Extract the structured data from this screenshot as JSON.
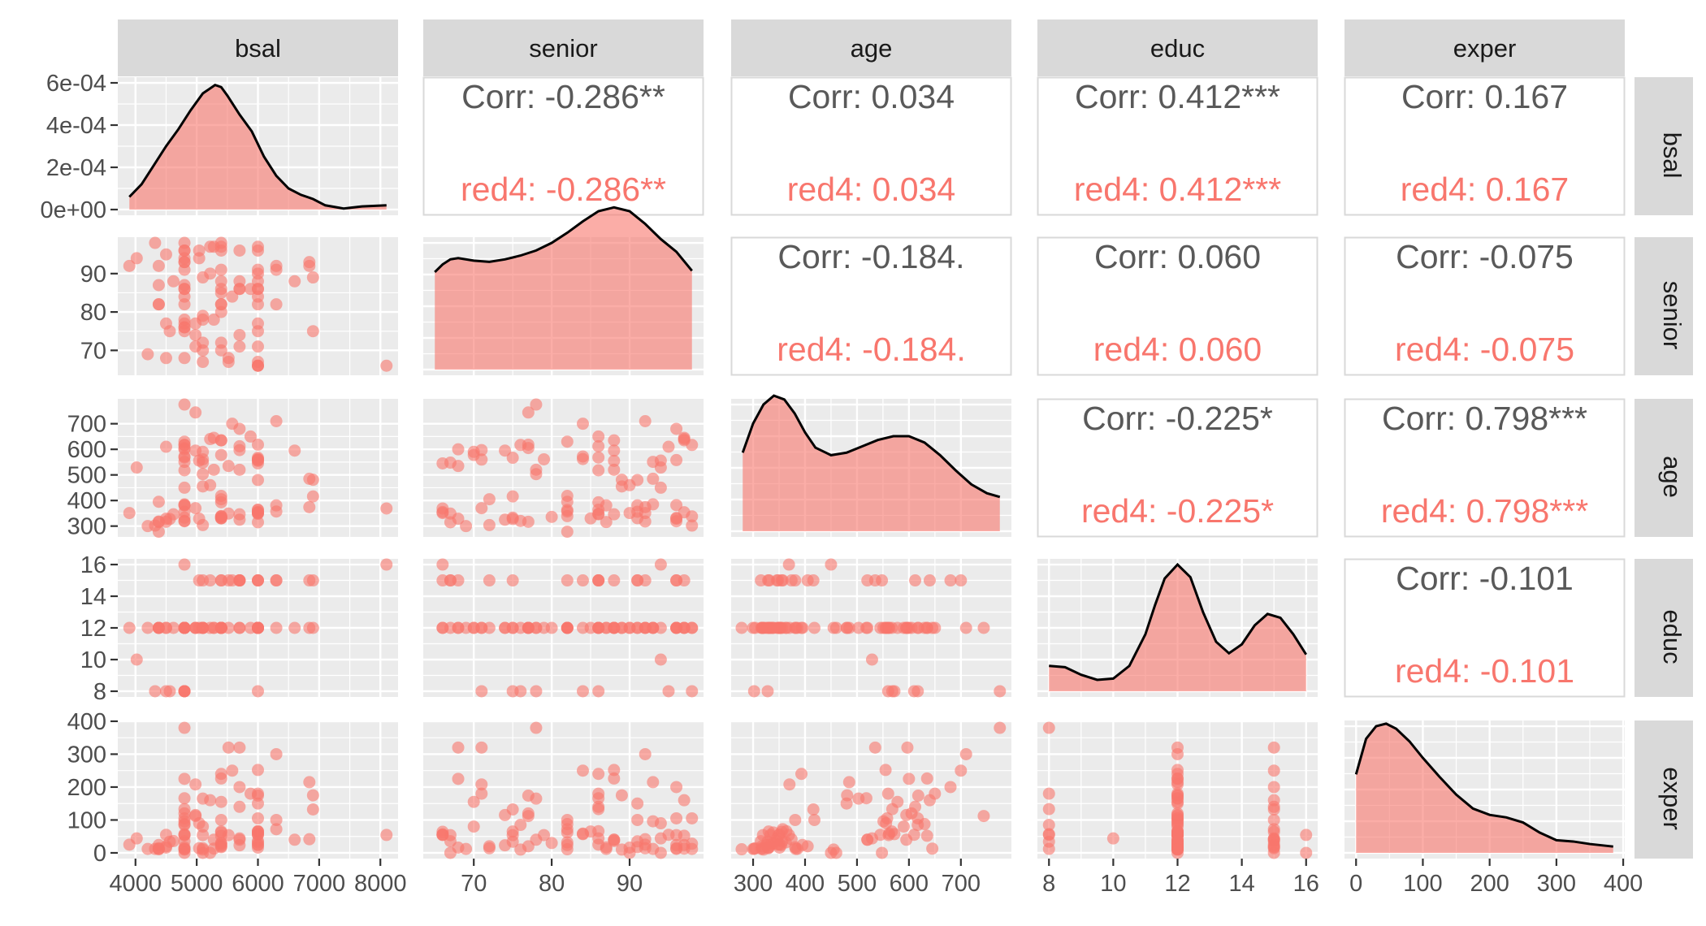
{
  "variables": [
    "bsal",
    "senior",
    "age",
    "educ",
    "exper"
  ],
  "colors": {
    "group": "#F8766D",
    "corr_text": "#595959",
    "panel_bg": "#EBEBEB",
    "strip_bg": "#D9D9D9",
    "grid": "#FFFFFF"
  },
  "chart_data": {
    "type": "scatter",
    "group_label": "red4",
    "variables": [
      "bsal",
      "senior",
      "age",
      "educ",
      "exper"
    ],
    "axes": {
      "bsal": {
        "lim": [
          3900,
          8100
        ],
        "ticks": [
          4000,
          5000,
          6000,
          7000,
          8000
        ],
        "labels": [
          "4000",
          "5000",
          "6000",
          "7000",
          "8000"
        ]
      },
      "senior": {
        "lim": [
          65,
          98
        ],
        "ticks": [
          70,
          80,
          90
        ],
        "labels": [
          "70",
          "80",
          "90"
        ]
      },
      "age": {
        "lim": [
          280,
          775
        ],
        "ticks": [
          300,
          400,
          500,
          600,
          700
        ],
        "labels": [
          "300",
          "400",
          "500",
          "600",
          "700"
        ]
      },
      "educ": {
        "lim": [
          8,
          16
        ],
        "ticks": [
          8,
          10,
          12,
          14,
          16
        ],
        "labels": [
          "8",
          "10",
          "12",
          "14",
          "16"
        ]
      },
      "exper": {
        "lim": [
          0,
          385
        ],
        "ticks": [
          0,
          100,
          200,
          300,
          400
        ],
        "labels": [
          "0",
          "100",
          "200",
          "300",
          "400"
        ]
      }
    },
    "density_ylim": [
      0,
      0.0006
    ],
    "density_ticks": [
      0,
      0.0002,
      0.0004,
      0.0006
    ],
    "density_labels": [
      "0e+00",
      "2e-04",
      "4e-04",
      "6e-04"
    ],
    "densities": {
      "bsal": {
        "x": [
          3900,
          4100,
          4300,
          4500,
          4700,
          4900,
          5100,
          5300,
          5400,
          5500,
          5700,
          5900,
          6100,
          6300,
          6500,
          6700,
          6900,
          7100,
          7400,
          7700,
          8100
        ],
        "y": [
          6e-05,
          0.00012,
          0.00021,
          0.0003,
          0.00038,
          0.00047,
          0.00055,
          0.00059,
          0.00058,
          0.00054,
          0.00045,
          0.00037,
          0.00025,
          0.00016,
          0.0001,
          7e-05,
          5e-05,
          2e-05,
          5e-06,
          1.5e-05,
          2e-05
        ]
      },
      "senior": {
        "x": [
          65,
          66,
          67,
          68,
          70,
          72,
          74,
          76,
          78,
          80,
          82,
          84,
          86,
          88,
          90,
          92,
          94,
          96,
          98
        ],
        "y": [
          0.77,
          0.83,
          0.87,
          0.88,
          0.86,
          0.85,
          0.87,
          0.9,
          0.94,
          1.0,
          1.08,
          1.17,
          1.25,
          1.28,
          1.25,
          1.15,
          1.03,
          0.93,
          0.78
        ]
      },
      "age": {
        "x": [
          280,
          300,
          320,
          340,
          360,
          380,
          400,
          420,
          450,
          480,
          510,
          540,
          570,
          600,
          630,
          660,
          690,
          720,
          750,
          775
        ],
        "y": [
          0.62,
          0.85,
          1.0,
          1.07,
          1.04,
          0.93,
          0.78,
          0.66,
          0.6,
          0.62,
          0.67,
          0.72,
          0.75,
          0.75,
          0.7,
          0.6,
          0.48,
          0.37,
          0.3,
          0.27
        ]
      },
      "educ": {
        "x": [
          8,
          8.5,
          9,
          9.5,
          10,
          10.5,
          11,
          11.3,
          11.6,
          12,
          12.4,
          12.8,
          13.2,
          13.6,
          14,
          14.4,
          14.8,
          15.2,
          15.6,
          16
        ],
        "y": [
          0.2,
          0.19,
          0.13,
          0.09,
          0.1,
          0.2,
          0.45,
          0.68,
          0.89,
          1.0,
          0.9,
          0.62,
          0.39,
          0.3,
          0.37,
          0.52,
          0.61,
          0.58,
          0.45,
          0.29
        ]
      },
      "exper": {
        "x": [
          0,
          15,
          30,
          45,
          60,
          80,
          100,
          125,
          150,
          175,
          200,
          225,
          250,
          275,
          300,
          325,
          350,
          385
        ],
        "y": [
          0.62,
          0.9,
          1.0,
          1.02,
          0.98,
          0.88,
          0.75,
          0.6,
          0.46,
          0.35,
          0.3,
          0.28,
          0.24,
          0.16,
          0.1,
          0.09,
          0.07,
          0.05
        ]
      }
    },
    "correlations": [
      {
        "row": "bsal",
        "col": "senior",
        "label": "Corr: -0.286**",
        "group_label": "red4: -0.286**"
      },
      {
        "row": "bsal",
        "col": "age",
        "label": "Corr: 0.034",
        "group_label": "red4: 0.034"
      },
      {
        "row": "bsal",
        "col": "educ",
        "label": "Corr: 0.412***",
        "group_label": "red4: 0.412***"
      },
      {
        "row": "bsal",
        "col": "exper",
        "label": "Corr: 0.167",
        "group_label": "red4: 0.167"
      },
      {
        "row": "senior",
        "col": "age",
        "label": "Corr: -0.184.",
        "group_label": "red4: -0.184."
      },
      {
        "row": "senior",
        "col": "educ",
        "label": "Corr: 0.060",
        "group_label": "red4: 0.060"
      },
      {
        "row": "senior",
        "col": "exper",
        "label": "Corr: -0.075",
        "group_label": "red4: -0.075"
      },
      {
        "row": "age",
        "col": "educ",
        "label": "Corr: -0.225*",
        "group_label": "red4: -0.225*"
      },
      {
        "row": "age",
        "col": "exper",
        "label": "Corr: 0.798***",
        "group_label": "red4: 0.798***"
      },
      {
        "row": "educ",
        "col": "exper",
        "label": "Corr: -0.101",
        "group_label": "red4: -0.101"
      }
    ],
    "observations": {
      "columns": [
        "bsal",
        "senior",
        "age",
        "educ",
        "exper"
      ],
      "rows": [
        [
          5040,
          96,
          329,
          15,
          14
        ],
        [
          6300,
          82,
          357,
          15,
          72
        ],
        [
          6000,
          67,
          315,
          15,
          35.5
        ],
        [
          6000,
          97,
          354,
          12,
          24
        ],
        [
          6000,
          66,
          351,
          12,
          56
        ],
        [
          6840,
          92,
          374,
          15,
          41.5
        ],
        [
          8100,
          66,
          369,
          16,
          54.5
        ],
        [
          6000,
          82,
          363,
          12,
          32
        ],
        [
          6000,
          88,
          555,
          12,
          252
        ],
        [
          6900,
          75,
          416,
          15,
          132
        ],
        [
          6900,
          89,
          481,
          12,
          175
        ],
        [
          5400,
          91,
          331,
          15,
          17.5
        ],
        [
          6000,
          66,
          355,
          15,
          64
        ],
        [
          6000,
          86,
          348,
          15,
          25
        ],
        [
          6000,
          90,
          351,
          12,
          16
        ],
        [
          6000,
          96,
          558,
          12,
          105
        ],
        [
          6000,
          84,
          562,
          12,
          58.5
        ],
        [
          6840,
          93,
          485,
          12,
          215
        ],
        [
          5700,
          86,
          346,
          15,
          44
        ],
        [
          5400,
          97,
          635,
          12,
          52
        ],
        [
          5520,
          67,
          349,
          12,
          54
        ],
        [
          5400,
          96,
          332,
          12,
          24
        ],
        [
          6000,
          86,
          364,
          12,
          66
        ],
        [
          5400,
          80,
          336,
          12,
          30
        ],
        [
          5400,
          98,
          338,
          12,
          28
        ],
        [
          5400,
          82,
          339,
          12,
          62
        ],
        [
          5400,
          70,
          578,
          12,
          155
        ],
        [
          6600,
          88,
          595,
          12,
          40
        ],
        [
          6000,
          77,
          618,
          12,
          174
        ],
        [
          6000,
          75,
          567,
          12,
          65
        ],
        [
          5700,
          74,
          325,
          12,
          23
        ],
        [
          6000,
          66,
          545,
          12,
          55
        ],
        [
          5700,
          71,
          597,
          12,
          320
        ],
        [
          5400,
          88,
          635,
          12,
          226
        ],
        [
          4800,
          98,
          617,
          12,
          105
        ],
        [
          5280,
          97,
          645,
          12,
          13
        ],
        [
          4800,
          93,
          385,
          12,
          12
        ],
        [
          6000,
          71,
          560,
          8,
          180
        ],
        [
          4800,
          87,
          381,
          12,
          17
        ],
        [
          4800,
          86,
          568,
          8,
          133
        ],
        [
          5100,
          79,
          561,
          12,
          54
        ],
        [
          5100,
          78,
          503,
          12,
          165
        ],
        [
          4800,
          75,
          333,
          12,
          54
        ],
        [
          5400,
          85,
          330,
          12,
          65
        ],
        [
          5100,
          72,
          304,
          12,
          14
        ],
        [
          4800,
          77,
          605,
          12,
          120
        ],
        [
          4800,
          91,
          356,
          12,
          35
        ],
        [
          4800,
          86,
          518,
          12,
          166
        ],
        [
          4980,
          71,
          370,
          12,
          208
        ],
        [
          4800,
          68,
          600,
          12,
          225
        ],
        [
          4800,
          96,
          319,
          12,
          54
        ],
        [
          4800,
          82,
          630,
          12,
          87.5
        ],
        [
          4800,
          93,
          551,
          12,
          96
        ],
        [
          4800,
          96,
          382,
          12,
          12
        ],
        [
          4800,
          78,
          775,
          8,
          380
        ],
        [
          4980,
          74,
          595,
          12,
          115
        ],
        [
          4800,
          76,
          617,
          8,
          85
        ],
        [
          4800,
          84,
          572,
          8,
          57
        ],
        [
          4800,
          76,
          320,
          12,
          10
        ],
        [
          5280,
          78,
          520,
          12,
          40
        ],
        [
          4380,
          87,
          316,
          12,
          12
        ],
        [
          4380,
          92,
          318,
          12,
          14
        ],
        [
          4500,
          68,
          329,
          12,
          16
        ],
        [
          4380,
          82,
          395,
          12,
          24
        ],
        [
          4320,
          98,
          302,
          8,
          12
        ],
        [
          4500,
          95,
          610,
          8,
          55
        ],
        [
          4500,
          77,
          317,
          12,
          20
        ],
        [
          4200,
          69,
          300,
          12,
          12
        ],
        [
          5040,
          94,
          556,
          12,
          90
        ],
        [
          4620,
          88,
          346,
          12,
          36
        ],
        [
          4980,
          77,
          744,
          12,
          112
        ],
        [
          3900,
          92,
          351,
          12,
          25
        ],
        [
          4020,
          94,
          529,
          10,
          44
        ],
        [
          4380,
          82,
          278,
          12,
          11
        ],
        [
          4560,
          75,
          328,
          8,
          34
        ],
        [
          5220,
          97,
          640,
          15,
          160
        ],
        [
          5520,
          68,
          535,
          15,
          320
        ],
        [
          5100,
          67,
          548,
          15,
          0
        ],
        [
          5400,
          86,
          393,
          12,
          240
        ],
        [
          6300,
          91,
          381,
          15,
          100
        ],
        [
          5700,
          86,
          612,
          15,
          140
        ],
        [
          5400,
          82,
          418,
          12,
          100
        ],
        [
          5100,
          70,
          590,
          12,
          80
        ],
        [
          5700,
          96,
          680,
          15,
          200
        ],
        [
          6000,
          91,
          480,
          12,
          150
        ],
        [
          5580,
          84,
          700,
          15,
          250
        ],
        [
          5220,
          90,
          460,
          12,
          0
        ],
        [
          5100,
          89,
          455,
          12,
          10
        ],
        [
          5700,
          88,
          520,
          15,
          40
        ],
        [
          5400,
          72,
          405,
          15,
          20
        ],
        [
          6300,
          92,
          710,
          12,
          300
        ],
        [
          5880,
          86,
          650,
          12,
          180
        ],
        [
          4800,
          94,
          450,
          16,
          0
        ]
      ]
    }
  }
}
